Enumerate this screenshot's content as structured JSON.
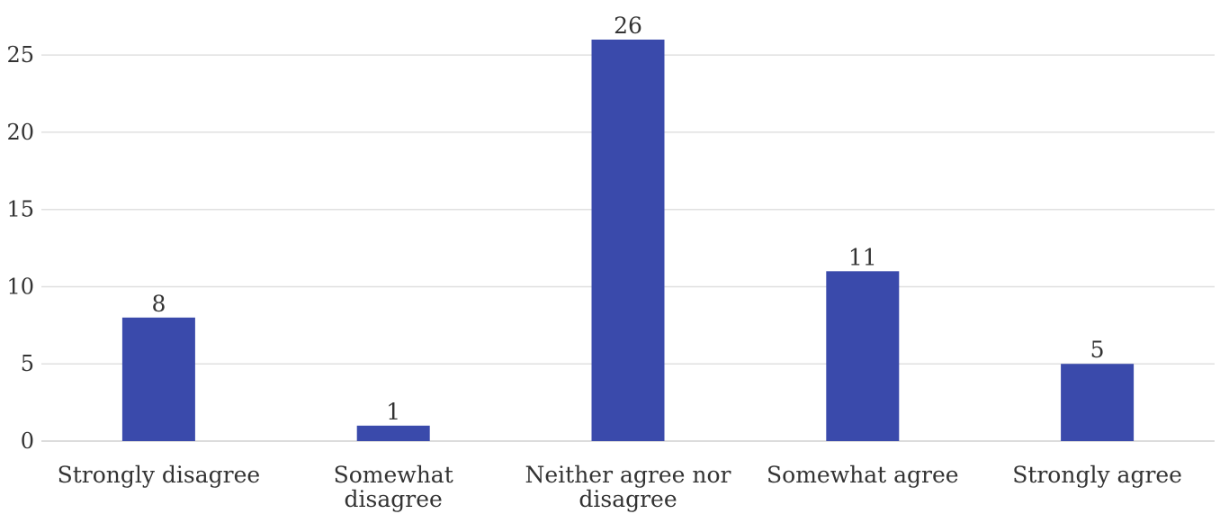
{
  "chart_data": {
    "type": "bar",
    "categories": [
      [
        "Strongly disagree"
      ],
      [
        "Somewhat",
        "disagree"
      ],
      [
        "Neither agree nor",
        "disagree"
      ],
      [
        "Somewhat agree"
      ],
      [
        "Strongly agree"
      ]
    ],
    "values": [
      8,
      1,
      26,
      11,
      5
    ],
    "data_labels": [
      "8",
      "1",
      "26",
      "11",
      "5"
    ],
    "title": "",
    "xlabel": "",
    "ylabel": "",
    "ylim": [
      0,
      26
    ],
    "yticks": [
      0,
      5,
      10,
      15,
      20,
      25
    ],
    "grid": true,
    "legend": "none",
    "bar_color": "#3a4aab"
  }
}
